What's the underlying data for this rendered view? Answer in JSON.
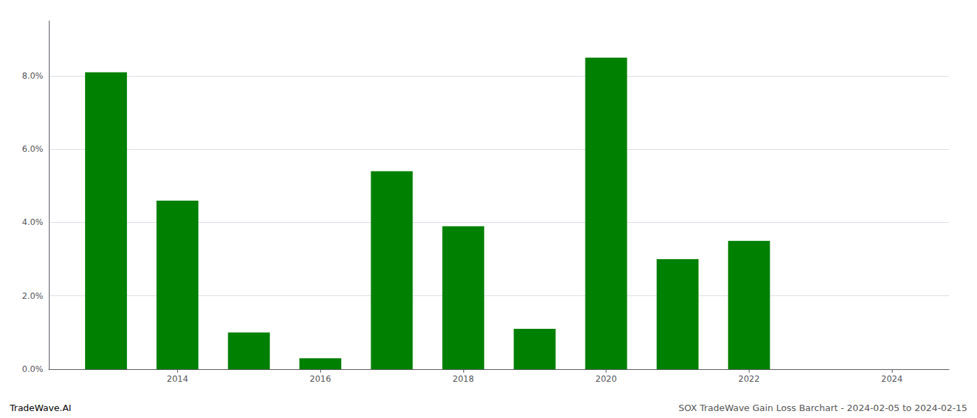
{
  "chart_data": {
    "type": "bar",
    "x": [
      2013,
      2014,
      2015,
      2016,
      2017,
      2018,
      2019,
      2020,
      2021,
      2022,
      2023
    ],
    "values": [
      0.081,
      0.046,
      0.01,
      0.003,
      0.054,
      0.039,
      0.011,
      0.085,
      0.03,
      0.035,
      0.0
    ],
    "color": "#008000",
    "xlim": [
      2012.2,
      2024.8
    ],
    "xticks": [
      2014,
      2016,
      2018,
      2020,
      2022,
      2024
    ],
    "ylim": [
      0,
      0.095
    ],
    "yticks": [
      {
        "value": 0.0,
        "label": "0.0%"
      },
      {
        "value": 0.02,
        "label": "2.0%"
      },
      {
        "value": 0.04,
        "label": "4.0%"
      },
      {
        "value": 0.06,
        "label": "6.0%"
      },
      {
        "value": 0.08,
        "label": "8.0%"
      }
    ],
    "grid": true,
    "annotations": [
      "TradeWave.AI",
      "SOX TradeWave Gain Loss Barchart - 2024-02-05 to 2024-02-15"
    ]
  }
}
